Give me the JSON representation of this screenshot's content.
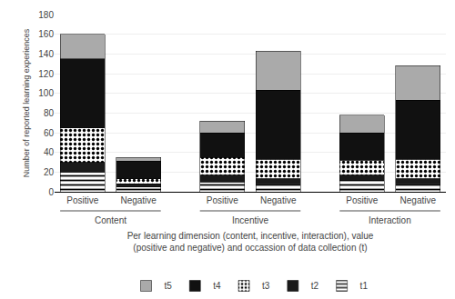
{
  "chart_data": {
    "type": "bar",
    "stacked": true,
    "categories": [
      "Positive",
      "Negative",
      "Positive",
      "Negative",
      "Positive",
      "Negative"
    ],
    "groups": [
      "Content",
      "Incentive",
      "Interaction"
    ],
    "series": [
      {
        "name": "t1",
        "color": "#ffffff",
        "values": [
          20,
          5,
          10,
          8,
          12,
          8
        ]
      },
      {
        "name": "t2",
        "color": "#1a1a1a",
        "values": [
          10,
          3,
          7,
          5,
          5,
          5
        ]
      },
      {
        "name": "t3",
        "color": "#ffffff",
        "values": [
          35,
          5,
          18,
          20,
          15,
          20
        ]
      },
      {
        "name": "t4",
        "color": "#111111",
        "values": [
          70,
          18,
          25,
          70,
          28,
          60
        ]
      },
      {
        "name": "t5",
        "color": "#aaaaaa",
        "values": [
          25,
          4,
          12,
          40,
          18,
          35
        ]
      }
    ],
    "xlabel": "Per learning dimension (content, incentive, interaction), value\n(positive and negative) and occassion of data collection (t)",
    "ylabel": "Number of reported learning experiences",
    "ylim": [
      0,
      180
    ],
    "yticks": [
      0,
      20,
      40,
      60,
      80,
      100,
      120,
      140,
      160,
      180
    ],
    "grid": true,
    "legend": "bottom"
  }
}
